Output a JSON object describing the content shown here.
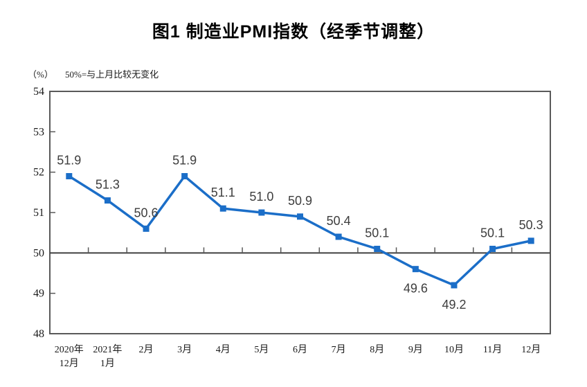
{
  "header": {
    "title": "图1 制造业PMI指数（经季节调整）",
    "unit_label": "（%）",
    "note_label": "50%=与上月比较无变化"
  },
  "chart_data": {
    "type": "line",
    "title": "图1 制造业PMI指数（经季节调整）",
    "unit": "（%）",
    "annotation": "50%=与上月比较无变化",
    "categories": [
      "2020年\n12月",
      "2021年\n1月",
      "2月",
      "3月",
      "4月",
      "5月",
      "6月",
      "7月",
      "8月",
      "9月",
      "10月",
      "11月",
      "12月"
    ],
    "series": [
      {
        "name": "制造业PMI指数",
        "values": [
          51.9,
          51.3,
          50.6,
          51.9,
          51.1,
          51.0,
          50.9,
          50.4,
          50.1,
          49.6,
          49.2,
          50.1,
          50.3
        ]
      }
    ],
    "data_labels": [
      "51.9",
      "51.3",
      "50.6",
      "51.9",
      "51.1",
      "51.0",
      "50.9",
      "50.4",
      "50.1",
      "49.6",
      "49.2",
      "50.1",
      "50.3"
    ],
    "label_positions": [
      "above",
      "above",
      "above",
      "above",
      "above",
      "above",
      "above",
      "above",
      "above",
      "below",
      "below",
      "above",
      "above"
    ],
    "ylim": [
      48,
      54
    ],
    "yticks": [
      48,
      49,
      50,
      51,
      52,
      53,
      54
    ],
    "reference_line_y": 50,
    "grid": false,
    "legend": "none",
    "marker": "square",
    "colors": {
      "line": "#1B6EC8",
      "marker": "#1B6EC8",
      "axis": "#595959",
      "reference_line": "#404040",
      "tick_label": "#1a1a1a",
      "data_label": "#3d3d3d",
      "title": "#000000"
    }
  }
}
